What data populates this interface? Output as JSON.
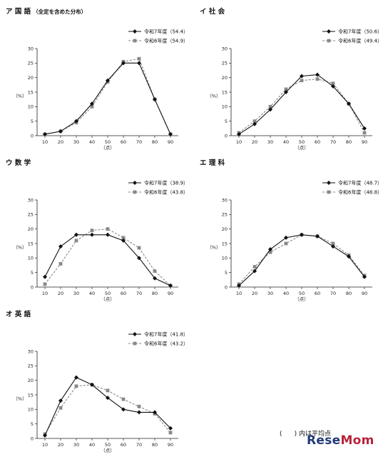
{
  "footnote": "(      ) 内は平均点",
  "watermark": {
    "text_a": "Rese",
    "text_b": "Mom",
    "color_a": "#233a78",
    "color_b": "#b8243a"
  },
  "colors": {
    "series_2025": "#111111",
    "series_2024": "#888888"
  },
  "chart_data": [
    {
      "type": "line",
      "title_prefix": "ア",
      "title": "国 語",
      "subtitle": "（全定を含めた分布）",
      "xlabel": "（点）",
      "ylabel": "（%）",
      "x": [
        10,
        20,
        30,
        40,
        50,
        60,
        70,
        80,
        90
      ],
      "ylim": [
        0,
        30
      ],
      "yticks": [
        0,
        5,
        10,
        15,
        20,
        25,
        30
      ],
      "series": [
        {
          "name": "令和7年度（54.4）",
          "marker": "diamond",
          "values": [
            0.5,
            1.5,
            5.0,
            11.0,
            19.0,
            25.0,
            25.0,
            12.5,
            0.5
          ]
        },
        {
          "name": "令和6年度（54.9）",
          "marker": "square",
          "values": [
            0.5,
            1.5,
            4.5,
            10.0,
            18.5,
            25.5,
            26.5,
            12.5,
            0.5
          ]
        }
      ]
    },
    {
      "type": "line",
      "title_prefix": "イ",
      "title": "社 会",
      "subtitle": "",
      "xlabel": "（点）",
      "ylabel": "（%）",
      "x": [
        10,
        20,
        30,
        40,
        50,
        60,
        70,
        80,
        90
      ],
      "ylim": [
        0,
        30
      ],
      "yticks": [
        0,
        5,
        10,
        15,
        20,
        25,
        30
      ],
      "series": [
        {
          "name": "令和7年度（50.6）",
          "marker": "diamond",
          "values": [
            0.5,
            4.0,
            9.0,
            15.0,
            20.5,
            21.0,
            17.0,
            11.0,
            2.5
          ]
        },
        {
          "name": "令和6年度（49.4）",
          "marker": "square",
          "values": [
            1.0,
            5.0,
            10.0,
            16.0,
            19.0,
            19.5,
            18.0,
            11.0,
            1.0
          ]
        }
      ]
    },
    {
      "type": "line",
      "title_prefix": "ウ",
      "title": "数 学",
      "subtitle": "",
      "xlabel": "（点）",
      "ylabel": "（%）",
      "x": [
        10,
        20,
        30,
        40,
        50,
        60,
        70,
        80,
        90
      ],
      "ylim": [
        0,
        30
      ],
      "yticks": [
        0,
        5,
        10,
        15,
        20,
        25,
        30
      ],
      "series": [
        {
          "name": "令和7年度（38.9）",
          "marker": "diamond",
          "values": [
            3.5,
            14.0,
            18.0,
            18.0,
            18.0,
            16.0,
            10.0,
            3.0,
            0.5
          ]
        },
        {
          "name": "令和6年度（43.8）",
          "marker": "square",
          "values": [
            1.0,
            8.0,
            16.0,
            19.5,
            20.0,
            17.0,
            13.5,
            5.5,
            0.5
          ]
        }
      ]
    },
    {
      "type": "line",
      "title_prefix": "エ",
      "title": "理 科",
      "subtitle": "",
      "xlabel": "（点）",
      "ylabel": "（%）",
      "x": [
        10,
        20,
        30,
        40,
        50,
        60,
        70,
        80,
        90
      ],
      "ylim": [
        0,
        30
      ],
      "yticks": [
        0,
        5,
        10,
        15,
        20,
        25,
        30
      ],
      "series": [
        {
          "name": "令和7年度（48.7）",
          "marker": "diamond",
          "values": [
            0.5,
            5.5,
            13.0,
            17.0,
            18.0,
            17.5,
            14.0,
            10.5,
            3.5
          ]
        },
        {
          "name": "令和6年度（48.8）",
          "marker": "square",
          "values": [
            1.0,
            7.0,
            12.0,
            15.0,
            18.0,
            17.5,
            15.0,
            11.0,
            4.0
          ]
        }
      ]
    },
    {
      "type": "line",
      "title_prefix": "オ",
      "title": "英 語",
      "subtitle": "",
      "xlabel": "（点）",
      "ylabel": "（%）",
      "x": [
        10,
        20,
        30,
        40,
        50,
        60,
        70,
        80,
        90
      ],
      "ylim": [
        0,
        30
      ],
      "yticks": [
        0,
        5,
        10,
        15,
        20,
        25,
        30
      ],
      "series": [
        {
          "name": "令和7年度（41.8）",
          "marker": "diamond",
          "values": [
            1.0,
            13.0,
            21.0,
            18.5,
            14.0,
            10.0,
            9.0,
            9.0,
            3.5
          ]
        },
        {
          "name": "令和6年度（43.2）",
          "marker": "square",
          "values": [
            1.5,
            10.5,
            18.0,
            18.5,
            16.5,
            13.5,
            11.0,
            8.5,
            2.0
          ]
        }
      ]
    }
  ]
}
